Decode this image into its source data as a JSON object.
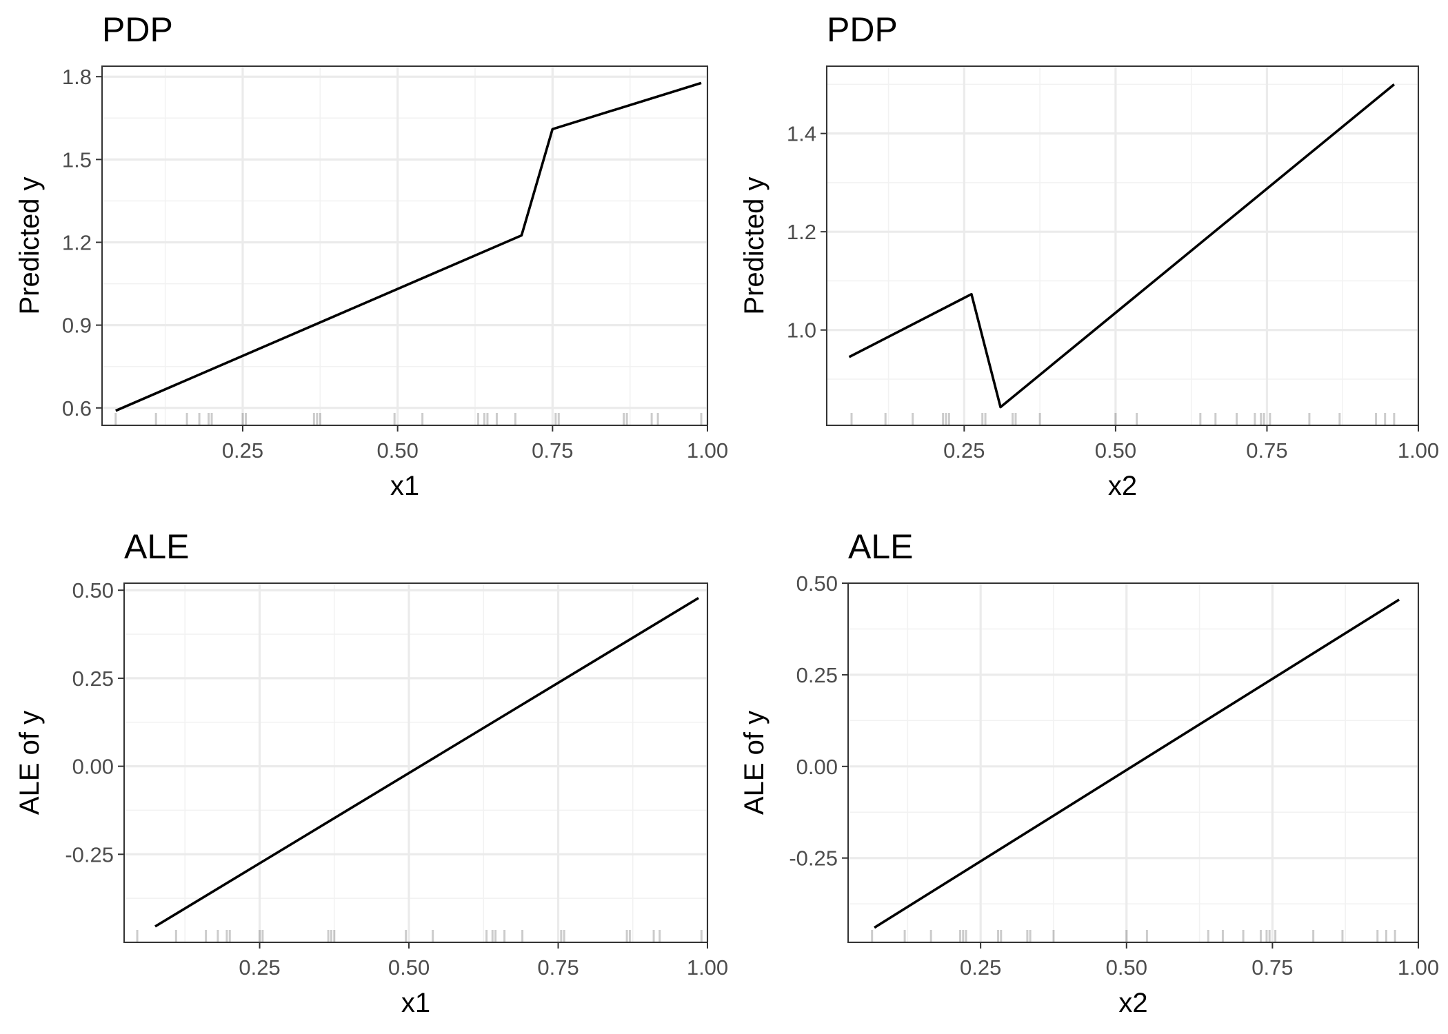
{
  "chart_data": [
    {
      "type": "line",
      "title": "PDP",
      "xlabel": "x1",
      "ylabel": "Predicted y",
      "xlim": [
        0.023,
        1.0
      ],
      "ylim": [
        0.537,
        1.838
      ],
      "x_ticks": [
        0.25,
        0.5,
        0.75,
        1.0
      ],
      "x_tick_labels": [
        "0.25",
        "0.50",
        "0.75",
        "1.00"
      ],
      "y_ticks": [
        0.6,
        0.9,
        1.2,
        1.5,
        1.8
      ],
      "y_tick_labels": [
        "0.6",
        "0.9",
        "1.2",
        "1.5",
        "1.8"
      ],
      "x_minor": [
        0.125,
        0.375,
        0.625,
        0.875
      ],
      "y_minor": [
        0.75,
        1.05,
        1.35,
        1.65
      ],
      "grid": true,
      "x": [
        0.045,
        0.7,
        0.75,
        0.99
      ],
      "y": [
        0.59,
        1.225,
        1.61,
        1.777
      ],
      "rug": [
        0.045,
        0.11,
        0.16,
        0.18,
        0.195,
        0.2,
        0.25,
        0.255,
        0.365,
        0.37,
        0.375,
        0.495,
        0.54,
        0.63,
        0.64,
        0.645,
        0.66,
        0.69,
        0.755,
        0.76,
        0.865,
        0.87,
        0.91,
        0.92,
        0.99
      ]
    },
    {
      "type": "line",
      "title": "PDP",
      "xlabel": "x2",
      "ylabel": "Predicted y",
      "xlim": [
        0.023,
        1.0
      ],
      "ylim": [
        0.806,
        1.537
      ],
      "x_ticks": [
        0.25,
        0.5,
        0.75,
        1.0
      ],
      "x_tick_labels": [
        "0.25",
        "0.50",
        "0.75",
        "1.00"
      ],
      "y_ticks": [
        1.0,
        1.2,
        1.4
      ],
      "y_tick_labels": [
        "1.0",
        "1.2",
        "1.4"
      ],
      "x_minor": [
        0.125,
        0.375,
        0.625,
        0.875
      ],
      "y_minor": [
        0.9,
        1.1,
        1.3,
        1.5
      ],
      "grid": true,
      "x": [
        0.06,
        0.262,
        0.31,
        0.96
      ],
      "y": [
        0.945,
        1.073,
        0.843,
        1.5
      ],
      "rug": [
        0.064,
        0.12,
        0.165,
        0.215,
        0.22,
        0.225,
        0.28,
        0.285,
        0.33,
        0.335,
        0.375,
        0.5,
        0.535,
        0.64,
        0.665,
        0.7,
        0.73,
        0.74,
        0.745,
        0.755,
        0.82,
        0.87,
        0.93,
        0.945,
        0.96
      ]
    },
    {
      "type": "line",
      "title": "ALE",
      "xlabel": "x1",
      "ylabel": "ALE of y",
      "xlim": [
        0.023,
        1.0
      ],
      "ylim": [
        -0.5,
        0.52
      ],
      "x_ticks": [
        0.25,
        0.5,
        0.75,
        1.0
      ],
      "x_tick_labels": [
        "0.25",
        "0.50",
        "0.75",
        "1.00"
      ],
      "y_ticks": [
        -0.25,
        0.0,
        0.25,
        0.5
      ],
      "y_tick_labels": [
        "-0.25",
        "0.00",
        "0.25",
        "0.50"
      ],
      "x_minor": [
        0.125,
        0.375,
        0.625,
        0.875
      ],
      "y_minor": [
        -0.375,
        -0.125,
        0.125,
        0.375
      ],
      "grid": true,
      "x": [
        0.075,
        0.985
      ],
      "y": [
        -0.455,
        0.478
      ],
      "rug": [
        0.045,
        0.11,
        0.16,
        0.18,
        0.195,
        0.2,
        0.25,
        0.255,
        0.365,
        0.37,
        0.375,
        0.495,
        0.54,
        0.63,
        0.64,
        0.645,
        0.66,
        0.69,
        0.755,
        0.76,
        0.865,
        0.87,
        0.91,
        0.92,
        0.99
      ]
    },
    {
      "type": "line",
      "title": "ALE",
      "xlabel": "x2",
      "ylabel": "ALE of y",
      "xlim": [
        0.023,
        1.0
      ],
      "ylim": [
        -0.48,
        0.5
      ],
      "x_ticks": [
        0.25,
        0.5,
        0.75,
        1.0
      ],
      "x_tick_labels": [
        "0.25",
        "0.50",
        "0.75",
        "1.00"
      ],
      "y_ticks": [
        -0.25,
        0.0,
        0.25,
        0.5
      ],
      "y_tick_labels": [
        "-0.25",
        "0.00",
        "0.25",
        "0.50"
      ],
      "x_minor": [
        0.125,
        0.375,
        0.625,
        0.875
      ],
      "y_minor": [
        -0.375,
        -0.125,
        0.125,
        0.375
      ],
      "grid": true,
      "x": [
        0.068,
        0.967
      ],
      "y": [
        -0.44,
        0.455
      ],
      "rug": [
        0.064,
        0.12,
        0.165,
        0.215,
        0.22,
        0.225,
        0.28,
        0.285,
        0.33,
        0.335,
        0.375,
        0.5,
        0.535,
        0.64,
        0.665,
        0.7,
        0.73,
        0.74,
        0.745,
        0.755,
        0.82,
        0.87,
        0.93,
        0.945,
        0.96
      ]
    }
  ]
}
